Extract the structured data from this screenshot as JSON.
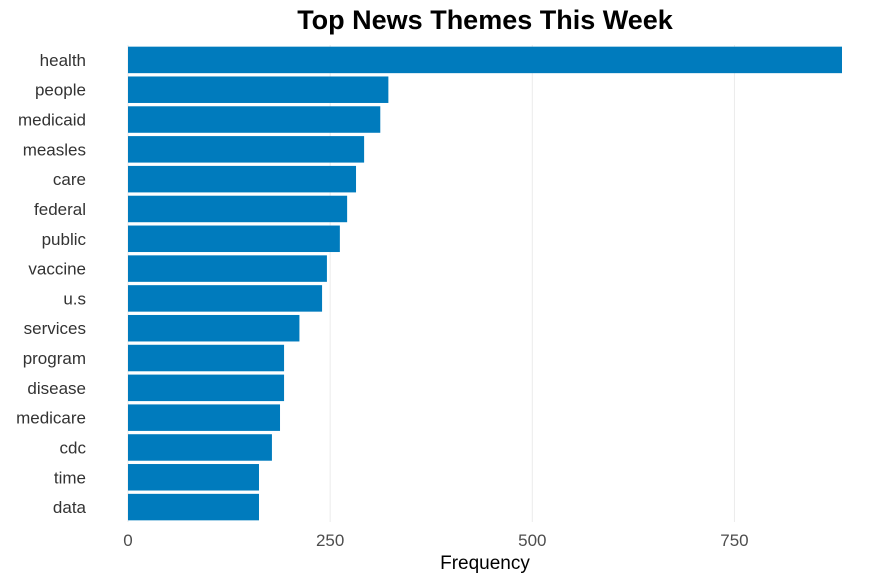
{
  "chart_data": {
    "type": "bar",
    "orientation": "horizontal",
    "title": "Top News Themes This Week",
    "xlabel": "Frequency",
    "ylabel": "",
    "categories": [
      "health",
      "people",
      "medicaid",
      "measles",
      "care",
      "federal",
      "public",
      "vaccine",
      "u.s",
      "services",
      "program",
      "disease",
      "medicare",
      "cdc",
      "time",
      "data"
    ],
    "values": [
      883,
      322,
      312,
      292,
      282,
      271,
      262,
      246,
      240,
      212,
      193,
      193,
      188,
      178,
      162,
      162
    ],
    "xlim": [
      0,
      883
    ],
    "xticks": [
      0,
      250,
      500,
      750
    ],
    "grid": true,
    "legend": "none",
    "bar_color": "#007bbd"
  }
}
